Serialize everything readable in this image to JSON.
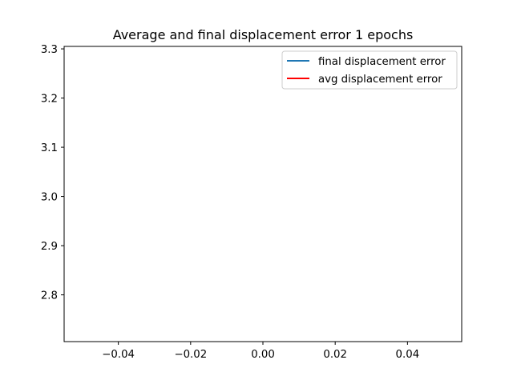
{
  "chart_data": {
    "type": "line",
    "title": "Average and final displacement error 1 epochs",
    "xlabel": "",
    "ylabel": "",
    "xlim": [
      -0.055,
      0.055
    ],
    "ylim": [
      2.705,
      3.305
    ],
    "x_ticks": [
      -0.04,
      -0.02,
      0.0,
      0.02,
      0.04
    ],
    "x_tick_labels": [
      "−0.04",
      "−0.02",
      "0.00",
      "0.02",
      "0.04"
    ],
    "y_ticks": [
      2.8,
      2.9,
      3.0,
      3.1,
      3.2,
      3.3
    ],
    "y_tick_labels": [
      "2.8",
      "2.9",
      "3.0",
      "3.1",
      "3.2",
      "3.3"
    ],
    "grid": false,
    "legend_placement": "upper right",
    "series": [
      {
        "name": "final displacement error",
        "color": "#1f77b4",
        "x": [],
        "y": []
      },
      {
        "name": "avg displacement error",
        "color": "#ff0000",
        "x": [],
        "y": []
      }
    ]
  }
}
